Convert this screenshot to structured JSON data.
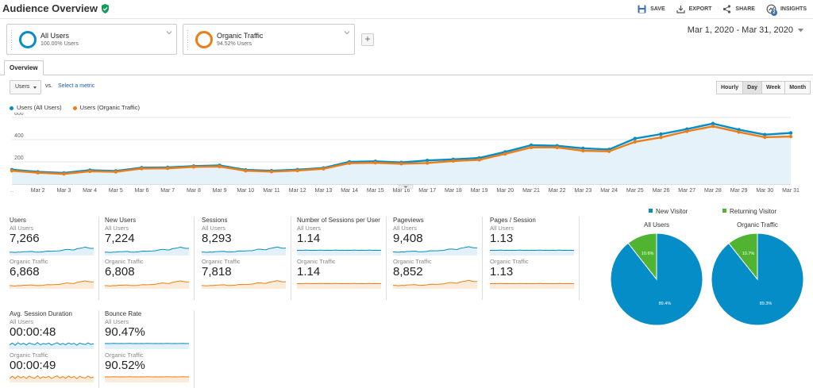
{
  "header": {
    "title": "Audience Overview",
    "actions": {
      "save": "SAVE",
      "export": "EXPORT",
      "share": "SHARE",
      "insights": "INSIGHTS",
      "insights_badge": "2"
    }
  },
  "segments": [
    {
      "name": "All Users",
      "pct": "100.00% Users",
      "color": "#058dc7"
    },
    {
      "name": "Organic Traffic",
      "pct": "94.52% Users",
      "color": "#ed7e17"
    }
  ],
  "add_segment": "+",
  "date_range": "Mar 1, 2020 - Mar 31, 2020",
  "tab": "Overview",
  "metric_select": {
    "value": "Users",
    "vs": "vs.",
    "select_link": "Select a metric"
  },
  "granularity": [
    {
      "label": "Hourly",
      "active": false
    },
    {
      "label": "Day",
      "active": true
    },
    {
      "label": "Week",
      "active": false
    },
    {
      "label": "Month",
      "active": false
    }
  ],
  "legend": [
    {
      "label": "Users (All Users)",
      "color": "#058dc7"
    },
    {
      "label": "Users (Organic Traffic)",
      "color": "#ed7e17"
    }
  ],
  "chart_data": {
    "type": "line",
    "x": [
      "...",
      "Mar 2",
      "Mar 3",
      "Mar 4",
      "Mar 5",
      "Mar 6",
      "Mar 7",
      "Mar 8",
      "Mar 9",
      "Mar 10",
      "Mar 11",
      "Mar 12",
      "Mar 13",
      "Mar 14",
      "Mar 15",
      "Mar 16",
      "Mar 17",
      "Mar 18",
      "Mar 19",
      "Mar 20",
      "Mar 21",
      "Mar 22",
      "Mar 23",
      "Mar 24",
      "Mar 25",
      "Mar 26",
      "Mar 27",
      "Mar 28",
      "Mar 29",
      "Mar 30",
      "Mar 31"
    ],
    "series": [
      {
        "name": "Users (All Users)",
        "color": "#058dc7",
        "values": [
          130,
          110,
          100,
          125,
          118,
          148,
          150,
          162,
          168,
          128,
          120,
          130,
          145,
          200,
          205,
          195,
          213,
          223,
          235,
          290,
          350,
          345,
          322,
          312,
          410,
          450,
          495,
          545,
          490,
          445,
          460
        ]
      },
      {
        "name": "Users (Organic Traffic)",
        "color": "#ed7e17",
        "values": [
          120,
          102,
          92,
          115,
          110,
          140,
          142,
          155,
          158,
          120,
          112,
          122,
          138,
          188,
          192,
          183,
          190,
          208,
          218,
          272,
          330,
          330,
          300,
          295,
          380,
          420,
          475,
          520,
          468,
          422,
          428
        ]
      }
    ],
    "yticks": [
      "200",
      "400",
      "600"
    ],
    "ylim": [
      0,
      600
    ],
    "grid": true
  },
  "tiles": [
    {
      "name": "Users",
      "all_label": "All Users",
      "all_value": "7,266",
      "org_label": "Organic Traffic",
      "org_value": "6,868",
      "all_spark": [
        30,
        28,
        26,
        30,
        29,
        34,
        34,
        36,
        37,
        31,
        30,
        31,
        33,
        40,
        41,
        40,
        42,
        43,
        45,
        52,
        60,
        60,
        56,
        55,
        68,
        73,
        79,
        86,
        78,
        72,
        74
      ],
      "org_spark": [
        28,
        26,
        24,
        28,
        27,
        32,
        32,
        34,
        35,
        29,
        28,
        29,
        31,
        38,
        39,
        38,
        39,
        41,
        43,
        50,
        57,
        57,
        53,
        52,
        64,
        70,
        76,
        82,
        75,
        69,
        70
      ]
    },
    {
      "name": "New Users",
      "all_label": "All Users",
      "all_value": "7,224",
      "org_label": "Organic Traffic",
      "org_value": "6,808",
      "all_spark": [
        30,
        28,
        26,
        30,
        29,
        34,
        34,
        36,
        37,
        31,
        30,
        31,
        33,
        40,
        41,
        40,
        42,
        43,
        45,
        52,
        60,
        60,
        56,
        55,
        68,
        73,
        79,
        86,
        78,
        72,
        74
      ],
      "org_spark": [
        28,
        26,
        24,
        28,
        27,
        32,
        32,
        34,
        35,
        29,
        28,
        29,
        31,
        38,
        39,
        38,
        39,
        41,
        43,
        50,
        57,
        57,
        53,
        52,
        64,
        70,
        76,
        82,
        75,
        69,
        70
      ]
    },
    {
      "name": "Sessions",
      "all_label": "All Users",
      "all_value": "8,293",
      "org_label": "Organic Traffic",
      "org_value": "7,818",
      "all_spark": [
        32,
        29,
        27,
        31,
        30,
        35,
        36,
        38,
        39,
        32,
        31,
        33,
        35,
        42,
        43,
        42,
        44,
        45,
        47,
        54,
        62,
        62,
        58,
        57,
        70,
        75,
        82,
        88,
        80,
        74,
        76
      ],
      "org_spark": [
        30,
        27,
        25,
        29,
        28,
        33,
        34,
        36,
        37,
        30,
        29,
        31,
        33,
        40,
        41,
        40,
        41,
        43,
        45,
        52,
        59,
        59,
        55,
        54,
        66,
        72,
        78,
        84,
        77,
        71,
        72
      ]
    },
    {
      "name": "Number of Sessions per User",
      "all_label": "All Users",
      "all_value": "1.14",
      "org_label": "Organic Traffic",
      "org_value": "1.14",
      "all_spark": [
        50,
        51,
        50,
        52,
        51,
        50,
        51,
        50,
        52,
        51,
        50,
        51,
        50,
        51,
        52,
        50,
        51,
        50,
        51,
        50,
        52,
        51,
        50,
        51,
        50,
        51,
        52,
        50,
        51,
        50,
        51
      ],
      "org_spark": [
        50,
        51,
        50,
        52,
        51,
        50,
        51,
        50,
        52,
        51,
        50,
        51,
        50,
        51,
        52,
        50,
        51,
        50,
        51,
        50,
        52,
        51,
        50,
        51,
        50,
        51,
        52,
        50,
        51,
        50,
        51
      ]
    },
    {
      "name": "Pageviews",
      "all_label": "All Users",
      "all_value": "9,408",
      "org_label": "Organic Traffic",
      "org_value": "8,852",
      "all_spark": [
        33,
        31,
        28,
        33,
        31,
        37,
        38,
        40,
        41,
        34,
        33,
        35,
        37,
        44,
        46,
        44,
        46,
        48,
        50,
        57,
        65,
        65,
        61,
        60,
        73,
        79,
        85,
        92,
        84,
        78,
        80
      ],
      "org_spark": [
        31,
        29,
        26,
        31,
        29,
        35,
        36,
        38,
        39,
        32,
        31,
        33,
        35,
        42,
        44,
        42,
        43,
        46,
        48,
        55,
        62,
        62,
        58,
        57,
        69,
        75,
        81,
        88,
        80,
        74,
        76
      ]
    },
    {
      "name": "Pages / Session",
      "all_label": "All Users",
      "all_value": "1.13",
      "org_label": "Organic Traffic",
      "org_value": "1.13",
      "all_spark": [
        50,
        51,
        50,
        51,
        52,
        50,
        51,
        50,
        51,
        50,
        51,
        52,
        50,
        51,
        50,
        51,
        50,
        51,
        52,
        50,
        51,
        50,
        51,
        50,
        51,
        52,
        50,
        51,
        50,
        51,
        50
      ],
      "org_spark": [
        50,
        51,
        50,
        51,
        52,
        50,
        51,
        50,
        51,
        50,
        51,
        52,
        50,
        51,
        50,
        51,
        50,
        51,
        52,
        50,
        51,
        50,
        51,
        50,
        51,
        52,
        50,
        51,
        50,
        51,
        50
      ]
    },
    {
      "name": "Avg. Session Duration",
      "all_label": "All Users",
      "all_value": "00:00:48",
      "org_label": "Organic Traffic",
      "org_value": "00:00:49",
      "all_spark": [
        40,
        60,
        35,
        65,
        45,
        58,
        38,
        62,
        50,
        42,
        66,
        40,
        55,
        48,
        60,
        38,
        52,
        64,
        44,
        56,
        40,
        62,
        48,
        58,
        36,
        60,
        50,
        44,
        62,
        46,
        52
      ],
      "org_spark": [
        38,
        62,
        36,
        66,
        44,
        60,
        36,
        64,
        48,
        40,
        68,
        38,
        56,
        46,
        62,
        36,
        54,
        66,
        42,
        58,
        38,
        64,
        46,
        60,
        34,
        62,
        48,
        42,
        64,
        44,
        54
      ]
    },
    {
      "name": "Bounce Rate",
      "all_label": "All Users",
      "all_value": "90.47%",
      "org_label": "Organic Traffic",
      "org_value": "90.52%",
      "all_spark": [
        55,
        56,
        55,
        57,
        56,
        55,
        56,
        55,
        56,
        57,
        55,
        56,
        55,
        56,
        55,
        57,
        56,
        55,
        56,
        55,
        56,
        55,
        57,
        56,
        55,
        56,
        55,
        56,
        57,
        55,
        56
      ],
      "org_spark": [
        55,
        56,
        55,
        57,
        56,
        55,
        56,
        55,
        56,
        57,
        55,
        56,
        55,
        56,
        55,
        57,
        56,
        55,
        56,
        55,
        56,
        55,
        57,
        56,
        55,
        56,
        55,
        56,
        57,
        55,
        56
      ]
    }
  ],
  "pies": {
    "legend": [
      {
        "label": "New Visitor",
        "color": "#058dc7"
      },
      {
        "label": "Returning Visitor",
        "color": "#50b432"
      }
    ],
    "charts": [
      {
        "title": "All Users",
        "new_pct": 89.4,
        "ret_pct": 10.6,
        "new_label": "89.4%",
        "ret_label": "10.6%"
      },
      {
        "title": "Organic Traffic",
        "new_pct": 89.3,
        "ret_pct": 10.7,
        "new_label": "89.3%",
        "ret_label": "10.7%"
      }
    ]
  }
}
